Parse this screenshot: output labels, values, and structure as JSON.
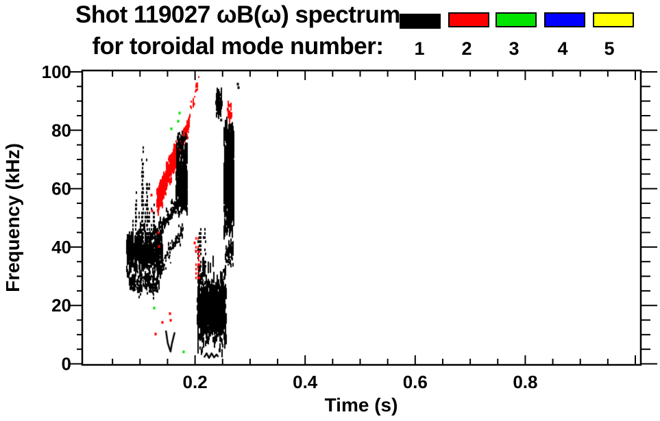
{
  "title": {
    "line1": "Shot 119027 ωB(ω) spectrum",
    "line2": "for toroidal mode number:"
  },
  "legend": {
    "modes": [
      {
        "label": "1",
        "color": "#000000"
      },
      {
        "label": "2",
        "color": "#ff0000"
      },
      {
        "label": "3",
        "color": "#00e400"
      },
      {
        "label": "4",
        "color": "#0000ff"
      },
      {
        "label": "5",
        "color": "#ffff00"
      }
    ]
  },
  "chart_data": {
    "type": "scatter",
    "subtype": "spectrogram-points-colored-by-toroidal-mode-number",
    "title": "Shot 119027 ωB(ω) spectrum for toroidal mode number: 1 2 3 4 5",
    "xlabel": "Time (s)",
    "ylabel": "Frequency (kHz)",
    "xlim": [
      0.0,
      1.01
    ],
    "ylim": [
      0,
      100
    ],
    "grid": false,
    "legend_position": "top-right",
    "x_major_ticks": [
      0.2,
      0.4,
      0.6,
      0.8
    ],
    "x_tick_labels": [
      "0.2",
      "0.4",
      "0.6",
      "0.8"
    ],
    "x_minor_step": 0.05,
    "y_major_ticks": [
      0,
      20,
      40,
      60,
      80,
      100
    ],
    "y_tick_labels": [
      "0",
      "20",
      "40",
      "60",
      "80",
      "100"
    ],
    "y_minor_step": 5,
    "clusters": [
      {
        "mode": 1,
        "kind": "cloud",
        "n": 520,
        "t": [
          0.076,
          0.141
        ],
        "f": [
          29,
          46
        ],
        "fc": 37.5,
        "fs": 3.6,
        "dash": [
          0.8,
          3.5
        ],
        "desc": "dense n=1 blob 30-45 kHz near t=0.08-0.14 s"
      },
      {
        "mode": 1,
        "kind": "cloud",
        "n": 160,
        "t": [
          0.08,
          0.135
        ],
        "f": [
          24,
          31
        ],
        "fc": 28,
        "fs": 2.5,
        "dash": [
          0.5,
          2.0
        ],
        "desc": "lower fringe of n=1 blob"
      },
      {
        "mode": 1,
        "kind": "spikes",
        "n": 20,
        "t": [
          0.082,
          0.128
        ],
        "fbase": 33,
        "ftop": [
          42,
          62
        ],
        "step": 1.4,
        "p": 0.6,
        "desc": "vertical striations above blob"
      },
      {
        "mode": 1,
        "kind": "spikes",
        "n": 6,
        "t": [
          0.095,
          0.118
        ],
        "fbase": 40,
        "ftop": [
          63,
          74
        ],
        "step": 1.4,
        "p": 0.55,
        "desc": "tall striations to ~74 kHz"
      },
      {
        "mode": 1,
        "kind": "spikes",
        "n": 10,
        "t": [
          0.086,
          0.13
        ],
        "fbase": 30,
        "ftop": [
          22,
          26
        ],
        "step": 1.3,
        "p": 0.6,
        "desc": "striations hanging below blob"
      },
      {
        "mode": 2,
        "kind": "chirp",
        "n": 430,
        "t": [
          0.131,
          0.167
        ],
        "f": [
          55,
          71
        ],
        "jitter": 2.0,
        "dash": [
          0.6,
          2.4
        ],
        "desc": "dense n=2 rising chirp 55-71 kHz"
      },
      {
        "mode": 2,
        "kind": "chirp",
        "n": 110,
        "t": [
          0.167,
          0.191
        ],
        "f": [
          71,
          82.5
        ],
        "jitter": 1.3,
        "dash": [
          0.5,
          1.8
        ],
        "desc": "n=2 chirp continuation to ~83 kHz"
      },
      {
        "mode": 2,
        "kind": "chirp",
        "n": 16,
        "t": [
          0.191,
          0.207
        ],
        "f": [
          86,
          96.5
        ],
        "jitter": 1.0,
        "dash": [
          0.5,
          1.4
        ],
        "desc": "sparse n=2 dots up to ~96 kHz"
      },
      {
        "mode": 1,
        "kind": "chirp",
        "n": 120,
        "t": [
          0.129,
          0.172
        ],
        "f": [
          43,
          56
        ],
        "jitter": 1.6,
        "dash": [
          0.4,
          1.6
        ],
        "desc": "n=1 marks rising under red chirp"
      },
      {
        "mode": 1,
        "kind": "chirp",
        "n": 80,
        "t": [
          0.14,
          0.178
        ],
        "f": [
          33,
          46
        ],
        "jitter": 1.4,
        "dash": [
          0.4,
          1.4
        ],
        "desc": "n=1 diagonal from blob"
      },
      {
        "mode": 1,
        "kind": "cloud",
        "n": 300,
        "t": [
          0.166,
          0.186
        ],
        "f": [
          50,
          74
        ],
        "fc": 62,
        "fs": 6,
        "dash": [
          1.0,
          4.0
        ],
        "desc": "n=1 vertical band 50-74 kHz near t=0.175 s"
      },
      {
        "mode": 1,
        "kind": "cloud",
        "n": 40,
        "t": [
          0.168,
          0.184
        ],
        "f": [
          74,
          79
        ],
        "fc": 76,
        "fs": 1.5,
        "dash": [
          0.5,
          1.5
        ]
      },
      {
        "mode": 1,
        "kind": "cloud",
        "n": 560,
        "t": [
          0.253,
          0.2705
        ],
        "f": [
          42,
          80.5
        ],
        "fc": 61,
        "fs": 9.5,
        "dash": [
          1.0,
          5.0
        ],
        "desc": "dense n=1 column 43-80 kHz near t=0.26 s"
      },
      {
        "mode": 1,
        "kind": "cloud",
        "n": 60,
        "t": [
          0.2555,
          0.2695
        ],
        "f": [
          33,
          42
        ],
        "fc": 38,
        "fs": 2.8,
        "dash": [
          0.5,
          2.0
        ]
      },
      {
        "mode": 1,
        "kind": "cloud",
        "n": 90,
        "t": [
          0.238,
          0.2485
        ],
        "f": [
          83,
          92.5
        ],
        "fc": 88,
        "fs": 2.6,
        "dash": [
          0.8,
          2.8
        ],
        "desc": "n=1 streak 83-92 kHz near t=0.243 s"
      },
      {
        "mode": 2,
        "kind": "cloud",
        "n": 34,
        "t": [
          0.2595,
          0.2665
        ],
        "f": [
          82,
          89.5
        ],
        "fc": 85.5,
        "fs": 2.0,
        "dash": [
          0.5,
          2.0
        ],
        "desc": "n=2 marks 82-89 kHz near t=0.263 s"
      },
      {
        "mode": 1,
        "kind": "cloud",
        "n": 420,
        "t": [
          0.204,
          0.2565
        ],
        "f": [
          2,
          34
        ],
        "fc": 17,
        "fs": 7.5,
        "dash": [
          0.8,
          4.0
        ],
        "desc": "broad low-frequency n=1 cluster 2-34 kHz"
      },
      {
        "mode": 1,
        "kind": "cloud",
        "n": 430,
        "t": [
          0.212,
          0.2535
        ],
        "f": [
          10,
          24
        ],
        "fc": 17,
        "fs": 3.6,
        "dash": [
          1.0,
          4.5
        ],
        "desc": "dense core ~11-23 kHz"
      },
      {
        "mode": 1,
        "kind": "spikes",
        "n": 7,
        "t": [
          0.205,
          0.22
        ],
        "fbase": 33,
        "ftop": [
          38,
          46
        ],
        "step": 1.4,
        "p": 0.6
      },
      {
        "mode": 2,
        "kind": "spikes",
        "n": 5,
        "t": [
          0.2005,
          0.209
        ],
        "fbase": 29,
        "ftop": [
          38,
          46
        ],
        "step": 1.5,
        "p": 0.55,
        "desc": "red streaks 28-46 kHz near t=0.205 s"
      },
      {
        "mode": 1,
        "kind": "polyline",
        "w": 2.5,
        "pts": [
          [
            0.147,
            11.4
          ],
          [
            0.1505,
            7.0
          ],
          [
            0.1555,
            4.2
          ],
          [
            0.158,
            7.0
          ],
          [
            0.163,
            10.8
          ]
        ],
        "desc": "V-shaped n=1 trace near t=0.155 s, 4-11 kHz"
      },
      {
        "mode": 1,
        "kind": "polyline",
        "w": 2.5,
        "pts": [
          [
            0.2165,
            2.2
          ],
          [
            0.221,
            3.6
          ],
          [
            0.2255,
            2.0
          ],
          [
            0.23,
            3.6
          ],
          [
            0.2345,
            2.2
          ],
          [
            0.239,
            3.2
          ],
          [
            0.2425,
            2.4
          ]
        ],
        "desc": "low squiggle ~2-4 kHz"
      },
      {
        "mode": 3,
        "kind": "dots",
        "pts": [
          [
            0.1258,
            19.1
          ],
          [
            0.1793,
            4.1
          ],
          [
            0.1569,
            80.5
          ],
          [
            0.1719,
            85.9
          ],
          [
            0.1694,
            83.1
          ]
        ],
        "desc": "isolated n=3 specks"
      },
      {
        "mode": 2,
        "kind": "dots",
        "pts": [
          [
            0.1208,
            57.8
          ],
          [
            0.122,
            52.4
          ],
          [
            0.1333,
            44.9
          ],
          [
            0.1345,
            40.2
          ],
          [
            0.1993,
            41.4
          ],
          [
            0.2017,
            38.6
          ],
          [
            0.1544,
            17.2
          ],
          [
            0.1557,
            14.9
          ],
          [
            0.1407,
            14.2
          ],
          [
            0.1283,
            10.2
          ],
          [
            0.203,
            95.8
          ],
          [
            0.198,
            89.0
          ]
        ],
        "desc": "isolated n=2 specks"
      },
      {
        "mode": 1,
        "kind": "dots",
        "pts": [
          [
            0.2777,
            95.8
          ],
          [
            0.279,
            94.6
          ],
          [
            0.1768,
            77.7
          ],
          [
            0.2475,
            83.5
          ]
        ],
        "desc": "isolated n=1 specks"
      }
    ]
  }
}
